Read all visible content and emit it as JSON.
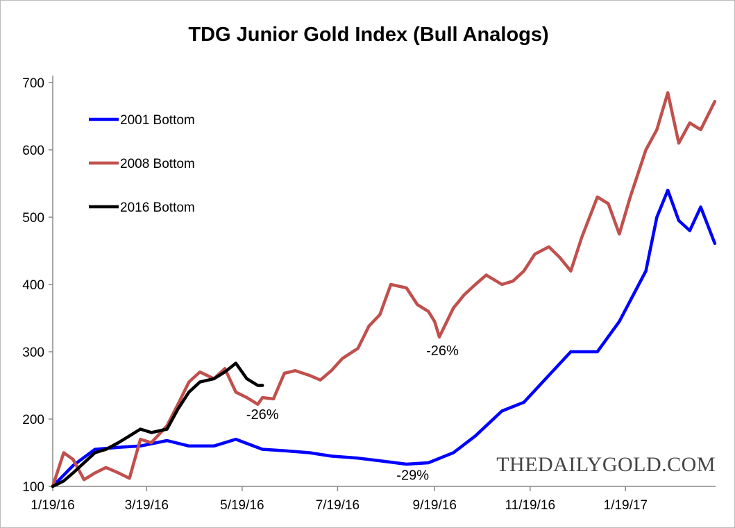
{
  "chart_data": {
    "type": "line",
    "title": "TDG Junior Gold Index (Bull Analogs)",
    "xlabel": "",
    "ylabel": "",
    "ylim": [
      100,
      700
    ],
    "yticks": [
      100,
      200,
      300,
      400,
      500,
      600,
      700
    ],
    "xticks": [
      "1/19/16",
      "3/19/16",
      "5/19/16",
      "7/19/16",
      "9/19/16",
      "11/19/16",
      "1/19/17"
    ],
    "xlim": [
      "1/19/16",
      "3/17/17"
    ],
    "grid": false,
    "legend_position": "top-left",
    "watermark": "THEDAILYGOLD.COM",
    "annotations": [
      {
        "text": "-26%",
        "x": "6/1/16",
        "y": 200
      },
      {
        "text": "-26%",
        "x": "9/24/16",
        "y": 295
      },
      {
        "text": "-29%",
        "x": "9/5/16",
        "y": 110
      }
    ],
    "series": [
      {
        "name": "2001 Bottom",
        "color": "#0000FF",
        "points": [
          [
            "1/19/16",
            100
          ],
          [
            "2/1/16",
            131
          ],
          [
            "2/15/16",
            155
          ],
          [
            "3/1/16",
            158
          ],
          [
            "3/15/16",
            160
          ],
          [
            "4/1/16",
            168
          ],
          [
            "4/15/16",
            160
          ],
          [
            "5/1/16",
            160
          ],
          [
            "5/15/16",
            170
          ],
          [
            "6/1/16",
            155
          ],
          [
            "6/15/16",
            153
          ],
          [
            "7/1/16",
            150
          ],
          [
            "7/15/16",
            145
          ],
          [
            "8/1/16",
            142
          ],
          [
            "8/15/16",
            138
          ],
          [
            "9/1/16",
            133
          ],
          [
            "9/15/16",
            135
          ],
          [
            "10/1/16",
            150
          ],
          [
            "10/15/16",
            175
          ],
          [
            "11/1/16",
            212
          ],
          [
            "11/15/16",
            225
          ],
          [
            "12/1/16",
            265
          ],
          [
            "12/15/16",
            300
          ],
          [
            "1/1/17",
            300
          ],
          [
            "1/15/17",
            345
          ],
          [
            "2/1/17",
            420
          ],
          [
            "2/8/17",
            500
          ],
          [
            "2/15/17",
            540
          ],
          [
            "2/22/17",
            495
          ],
          [
            "3/1/17",
            480
          ],
          [
            "3/8/17",
            515
          ],
          [
            "3/17/17",
            461
          ]
        ]
      },
      {
        "name": "2008 Bottom",
        "color": "#C0504D",
        "points": [
          [
            "1/19/16",
            100
          ],
          [
            "1/26/16",
            150
          ],
          [
            "2/1/16",
            140
          ],
          [
            "2/8/16",
            110
          ],
          [
            "2/15/16",
            120
          ],
          [
            "2/22/16",
            128
          ],
          [
            "3/1/16",
            120
          ],
          [
            "3/8/16",
            112
          ],
          [
            "3/15/16",
            170
          ],
          [
            "3/22/16",
            165
          ],
          [
            "4/1/16",
            190
          ],
          [
            "4/8/16",
            222
          ],
          [
            "4/15/16",
            255
          ],
          [
            "4/22/16",
            270
          ],
          [
            "5/1/16",
            260
          ],
          [
            "5/8/16",
            275
          ],
          [
            "5/15/16",
            240
          ],
          [
            "5/22/16",
            232
          ],
          [
            "5/29/16",
            222
          ],
          [
            "6/1/16",
            232
          ],
          [
            "6/8/16",
            230
          ],
          [
            "6/15/16",
            268
          ],
          [
            "6/22/16",
            272
          ],
          [
            "7/1/16",
            265
          ],
          [
            "7/8/16",
            258
          ],
          [
            "7/15/16",
            272
          ],
          [
            "7/22/16",
            290
          ],
          [
            "8/1/16",
            305
          ],
          [
            "8/8/16",
            338
          ],
          [
            "8/15/16",
            355
          ],
          [
            "8/22/16",
            400
          ],
          [
            "9/1/16",
            395
          ],
          [
            "9/8/16",
            370
          ],
          [
            "9/15/16",
            360
          ],
          [
            "9/19/16",
            345
          ],
          [
            "9/22/16",
            322
          ],
          [
            "10/1/16",
            365
          ],
          [
            "10/8/16",
            385
          ],
          [
            "10/15/16",
            400
          ],
          [
            "10/22/16",
            414
          ],
          [
            "11/1/16",
            400
          ],
          [
            "11/8/16",
            405
          ],
          [
            "11/15/16",
            420
          ],
          [
            "11/22/16",
            445
          ],
          [
            "12/1/16",
            456
          ],
          [
            "12/8/16",
            440
          ],
          [
            "12/15/16",
            420
          ],
          [
            "12/22/16",
            470
          ],
          [
            "1/1/17",
            530
          ],
          [
            "1/8/17",
            520
          ],
          [
            "1/15/17",
            475
          ],
          [
            "1/22/17",
            530
          ],
          [
            "2/1/17",
            600
          ],
          [
            "2/8/17",
            630
          ],
          [
            "2/15/17",
            685
          ],
          [
            "2/22/17",
            610
          ],
          [
            "3/1/17",
            640
          ],
          [
            "3/8/17",
            630
          ],
          [
            "3/17/17",
            672
          ]
        ]
      },
      {
        "name": "2016 Bottom",
        "color": "#000000",
        "points": [
          [
            "1/19/16",
            100
          ],
          [
            "1/26/16",
            108
          ],
          [
            "2/1/16",
            120
          ],
          [
            "2/8/16",
            135
          ],
          [
            "2/15/16",
            150
          ],
          [
            "2/22/16",
            155
          ],
          [
            "3/1/16",
            165
          ],
          [
            "3/8/16",
            175
          ],
          [
            "3/15/16",
            185
          ],
          [
            "3/22/16",
            180
          ],
          [
            "4/1/16",
            185
          ],
          [
            "4/8/16",
            215
          ],
          [
            "4/15/16",
            240
          ],
          [
            "4/22/16",
            255
          ],
          [
            "5/1/16",
            260
          ],
          [
            "5/8/16",
            270
          ],
          [
            "5/15/16",
            283
          ],
          [
            "5/22/16",
            260
          ],
          [
            "5/29/16",
            250
          ],
          [
            "6/1/16",
            250
          ]
        ]
      }
    ]
  }
}
